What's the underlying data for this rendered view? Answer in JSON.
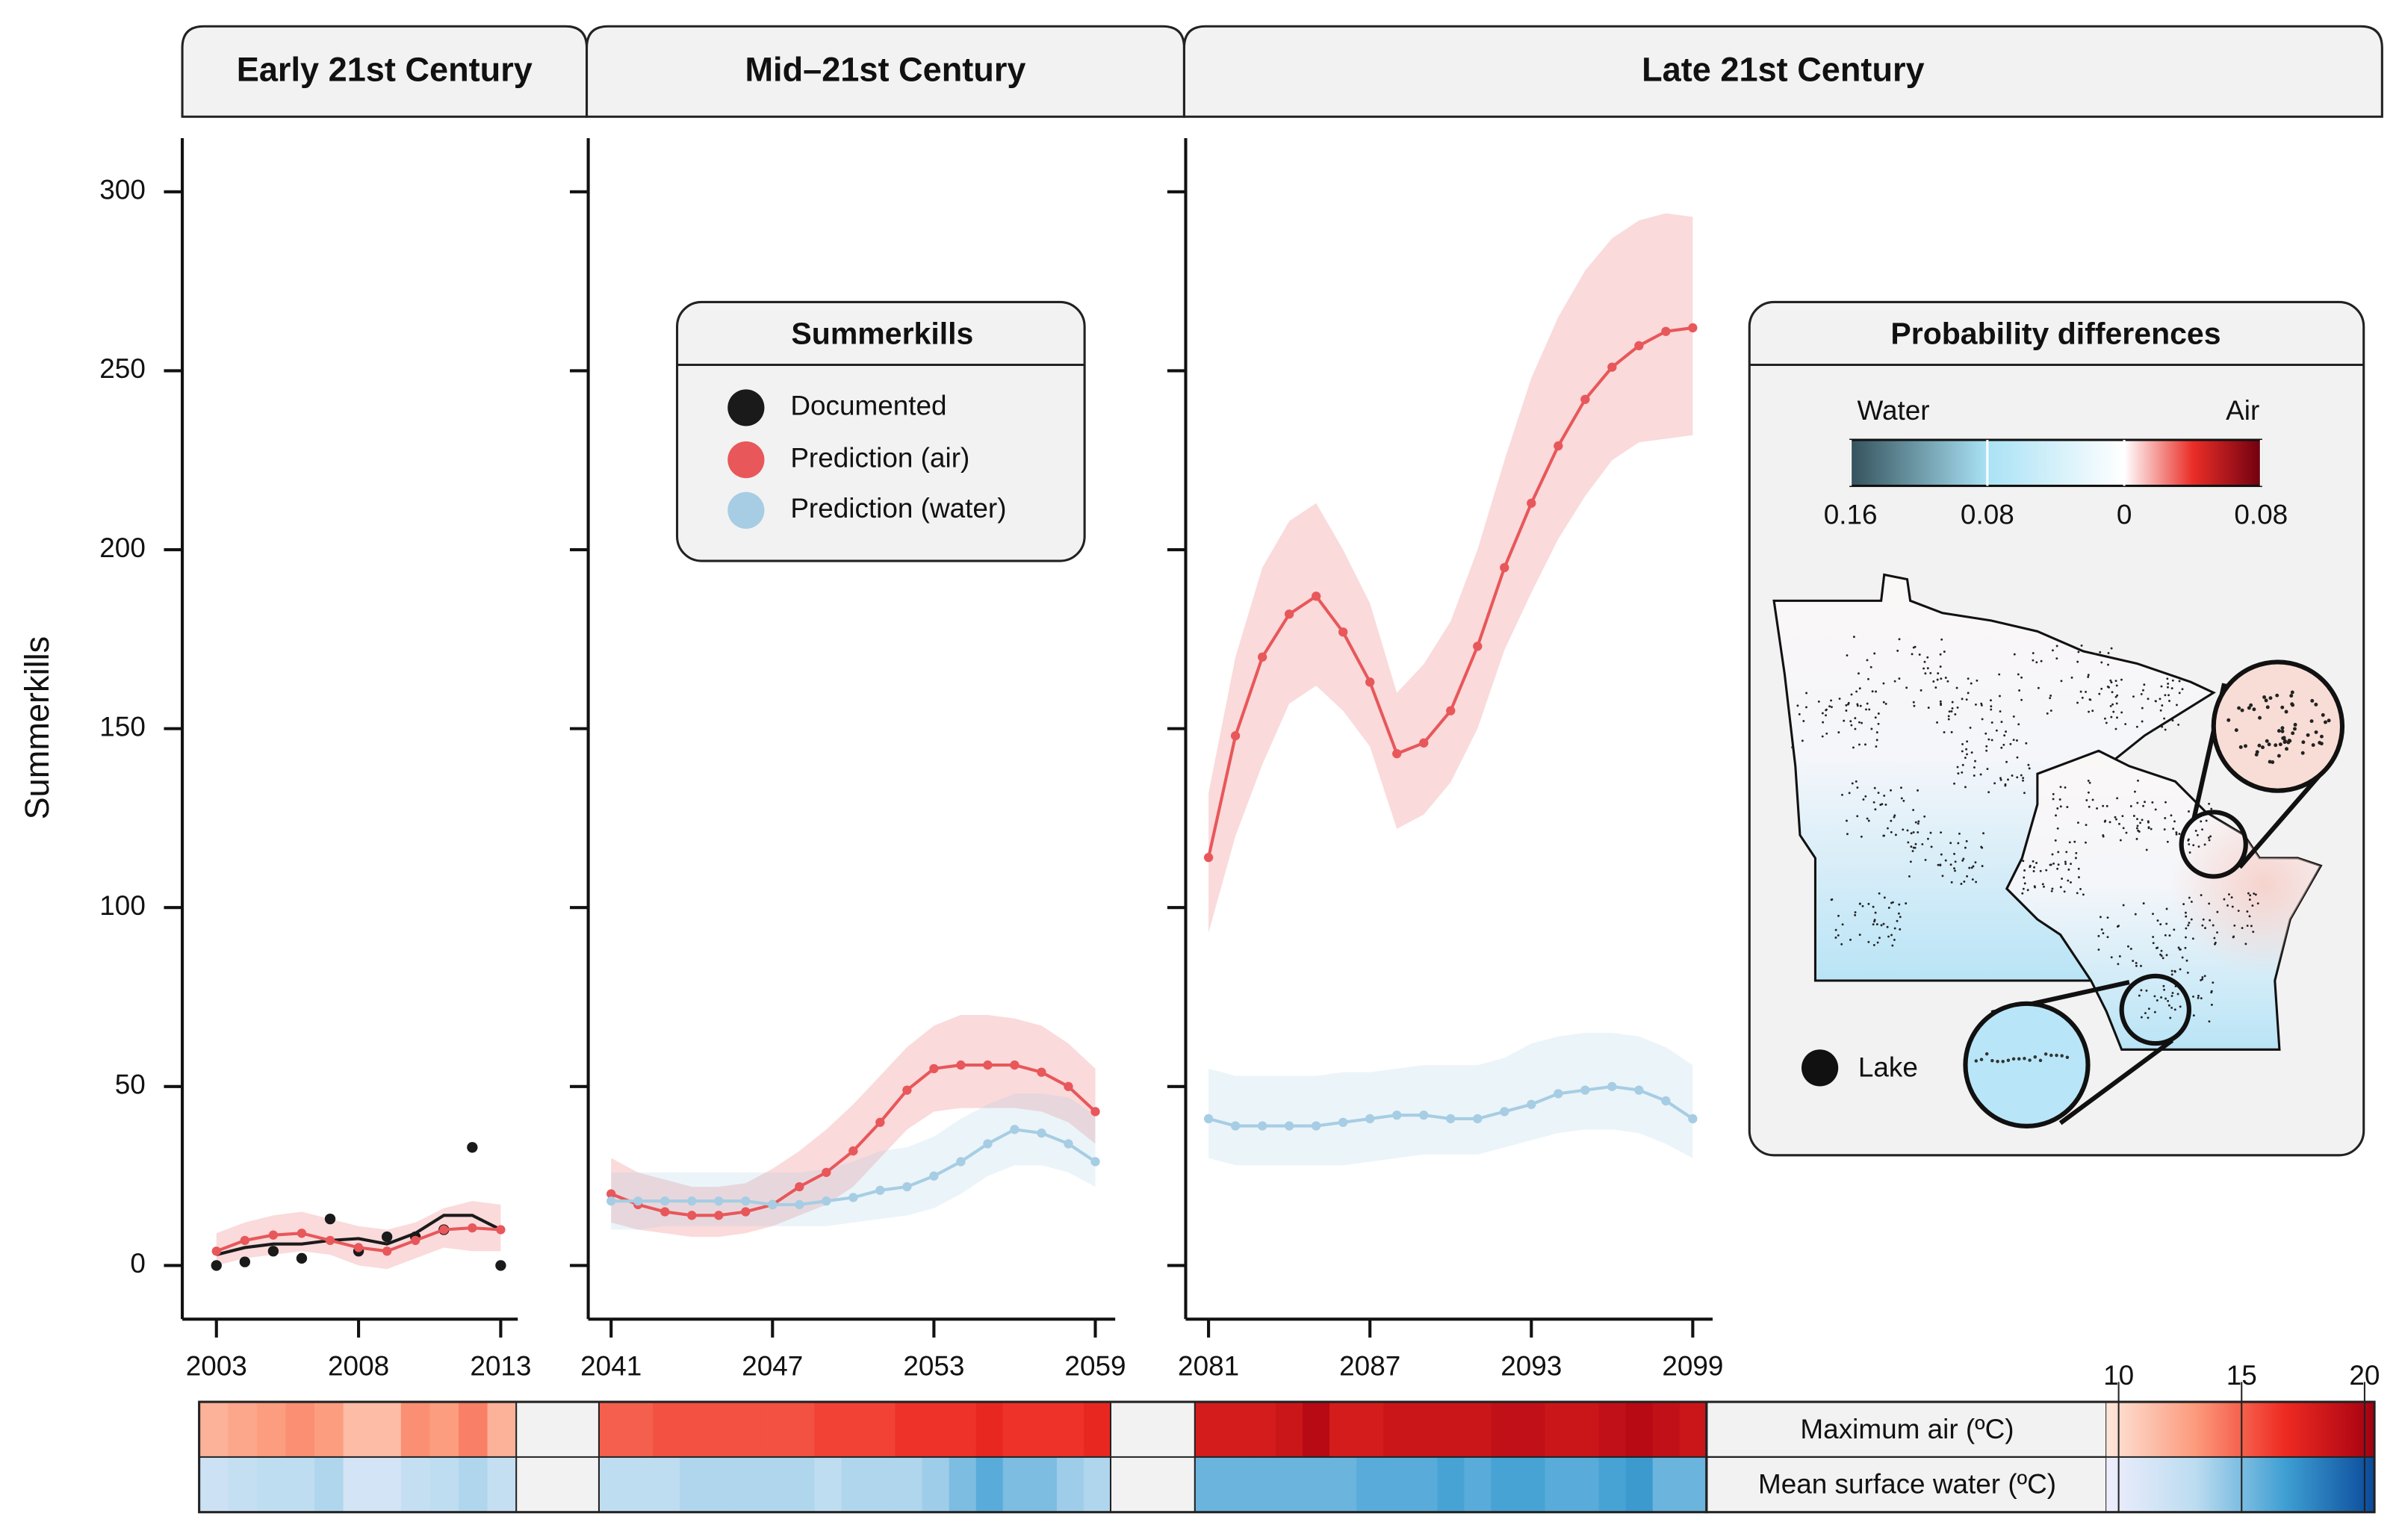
{
  "y_label": "Summerkills",
  "legend_title": "Summerkills",
  "chart_data": [
    {
      "type": "line",
      "title": "Early 21st Century",
      "x": [
        2003,
        2004,
        2005,
        2006,
        2007,
        2008,
        2009,
        2010,
        2011,
        2012,
        2013
      ],
      "xlim": [
        2001.8,
        2013.6
      ],
      "xticks": [
        2003,
        2008,
        2013
      ],
      "ylim": [
        -15,
        315
      ],
      "yticks": [
        0,
        50,
        100,
        150,
        200,
        250,
        300
      ],
      "series": [
        {
          "name": "Documented",
          "color": "#1a1a1a",
          "values": [
            0,
            1,
            4,
            2,
            13,
            4,
            8,
            8,
            10,
            33,
            0
          ],
          "smooth": [
            3,
            5,
            6,
            6,
            7,
            7.5,
            6,
            9,
            14,
            14,
            10
          ]
        },
        {
          "name": "Prediction (air)",
          "color": "#e8575a",
          "values": [
            4,
            7,
            8.5,
            9,
            7,
            5,
            4,
            7,
            10,
            10.5,
            10
          ],
          "lower": [
            0,
            2,
            3,
            4,
            3,
            0,
            -1,
            2,
            5,
            4,
            4
          ],
          "upper": [
            9,
            12,
            14,
            15,
            13,
            11,
            10,
            12,
            16,
            18,
            17
          ]
        }
      ]
    },
    {
      "type": "line",
      "title": "Mid–21st Century",
      "x": [
        2041,
        2042,
        2043,
        2044,
        2045,
        2046,
        2047,
        2048,
        2049,
        2050,
        2051,
        2052,
        2053,
        2054,
        2055,
        2056,
        2057,
        2058,
        2059
      ],
      "xlim": [
        2040.15,
        2059.74
      ],
      "xticks": [
        2041,
        2047,
        2053,
        2059
      ],
      "ylim": [
        -15,
        315
      ],
      "yticks": [
        0,
        50,
        100,
        150,
        200,
        250,
        300
      ],
      "series": [
        {
          "name": "Prediction (air)",
          "color": "#e8575a",
          "values": [
            20,
            17,
            15,
            14,
            14,
            15,
            17,
            22,
            26,
            32,
            40,
            49,
            55,
            56,
            56,
            56,
            54,
            50,
            43
          ],
          "lower": [
            12,
            10,
            9,
            8,
            8,
            9,
            11,
            14,
            17,
            22,
            30,
            38,
            43,
            44,
            44,
            44,
            43,
            40,
            34
          ],
          "upper": [
            30,
            26,
            24,
            22,
            22,
            23,
            27,
            32,
            38,
            45,
            53,
            61,
            67,
            70,
            70,
            69,
            67,
            62,
            55
          ]
        },
        {
          "name": "Prediction (water)",
          "color": "#a6cde3",
          "values": [
            18,
            18,
            18,
            18,
            18,
            18,
            17,
            17,
            18,
            19,
            21,
            22,
            25,
            29,
            34,
            38,
            37,
            34,
            29
          ],
          "lower": [
            10,
            10,
            11,
            11,
            11,
            11,
            11,
            11,
            11,
            12,
            13,
            14,
            16,
            20,
            25,
            28,
            28,
            26,
            22
          ],
          "upper": [
            26,
            26,
            26,
            26,
            26,
            26,
            26,
            26,
            27,
            29,
            32,
            33,
            36,
            41,
            45,
            48,
            48,
            47,
            42
          ]
        }
      ]
    },
    {
      "type": "line",
      "title": "Late 21st Century",
      "x": [
        2081,
        2082,
        2083,
        2084,
        2085,
        2086,
        2087,
        2088,
        2089,
        2090,
        2091,
        2092,
        2093,
        2094,
        2095,
        2096,
        2097,
        2098,
        2099
      ],
      "xlim": [
        2080.15,
        2099.74
      ],
      "xticks": [
        2081,
        2087,
        2093,
        2099
      ],
      "ylim": [
        -15,
        315
      ],
      "yticks": [
        0,
        50,
        100,
        150,
        200,
        250,
        300
      ],
      "series": [
        {
          "name": "Prediction (air)",
          "color": "#e8575a",
          "values": [
            114,
            148,
            170,
            182,
            187,
            177,
            163,
            143,
            146,
            155,
            173,
            195,
            213,
            229,
            242,
            251,
            257,
            261,
            262
          ],
          "lower": [
            93,
            120,
            140,
            157,
            162,
            155,
            145,
            122,
            126,
            135,
            150,
            172,
            188,
            203,
            215,
            225,
            230,
            231,
            232
          ],
          "upper": [
            132,
            170,
            195,
            208,
            213,
            200,
            185,
            160,
            168,
            180,
            200,
            225,
            248,
            265,
            278,
            287,
            292,
            294,
            293
          ]
        },
        {
          "name": "Prediction (water)",
          "color": "#a6cde3",
          "values": [
            41,
            39,
            39,
            39,
            39,
            40,
            41,
            42,
            42,
            41,
            41,
            43,
            45,
            48,
            49,
            50,
            49,
            46,
            41
          ],
          "lower": [
            30,
            28,
            28,
            28,
            28,
            28,
            29,
            30,
            31,
            31,
            31,
            33,
            35,
            37,
            38,
            38,
            37,
            34,
            30
          ],
          "upper": [
            55,
            53,
            53,
            53,
            53,
            54,
            54,
            55,
            56,
            56,
            56,
            58,
            62,
            64,
            65,
            65,
            64,
            61,
            56
          ]
        }
      ]
    }
  ],
  "heatmap": {
    "lim": [
      9.5,
      20.4
    ],
    "ticks": [
      10,
      15,
      20
    ],
    "rows": [
      {
        "label": "Maximum air (ºC)",
        "colors": [
          "#fde6da",
          "#fc9a7c",
          "#ee2a22",
          "#a50010"
        ],
        "values": [
          [
            12,
            12.5,
            13,
            13.5,
            13,
            11.5,
            11.5,
            13.5,
            13,
            14,
            12
          ],
          [
            15,
            15,
            15.5,
            15.5,
            15.5,
            15.5,
            15.5,
            15.5,
            16,
            16,
            16,
            16.5,
            16.5,
            16.5,
            17,
            16.5,
            16.5,
            16.5,
            17
          ],
          [
            18,
            18,
            18,
            18.5,
            19.5,
            18,
            18,
            18.5,
            18.5,
            18.5,
            18.5,
            19,
            19,
            18.5,
            18.5,
            19,
            19.5,
            19,
            18.5
          ]
        ]
      },
      {
        "label": "Mean surface water (ºC)",
        "colors": [
          "#eeeefc",
          "#bcdcf0",
          "#3f9fd3",
          "#0a4a9a"
        ],
        "values": [
          [
            12,
            12.5,
            13,
            13,
            13.5,
            11.5,
            11.5,
            12.5,
            13,
            13.5,
            12.5
          ],
          [
            13,
            13,
            13,
            13.5,
            13.5,
            13.5,
            13.5,
            13.5,
            13,
            13.5,
            13.5,
            13.5,
            14,
            15,
            16,
            15,
            15,
            14,
            13.5
          ],
          [
            15.5,
            15.5,
            15.5,
            15.5,
            15.5,
            15.5,
            16,
            16,
            16,
            16.5,
            16,
            16.5,
            16.5,
            16,
            16,
            16.5,
            17,
            15.5,
            15.5
          ]
        ]
      }
    ]
  },
  "prob_diff": {
    "title": "Probability differences",
    "left_label": "Water",
    "right_label": "Air",
    "lim": [
      -0.16,
      0.08
    ],
    "ticks": [
      {
        "value": -0.16,
        "label": "0.16"
      },
      {
        "value": -0.08,
        "label": "0.08"
      },
      0,
      0.08
    ],
    "stops": [
      {
        "value": -0.16,
        "color": "#34525c"
      },
      {
        "value": -0.08,
        "color": "#a9e2f5"
      },
      {
        "value": 0,
        "color": "#ffffff"
      },
      {
        "value": 0.04,
        "color": "#ea2e28"
      },
      {
        "value": 0.08,
        "color": "#700010"
      }
    ],
    "lake_label": "Lake"
  }
}
